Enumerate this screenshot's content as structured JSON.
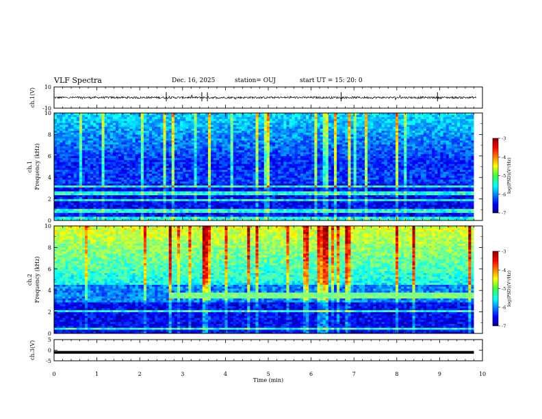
{
  "header": {
    "title": "VLF Spectra",
    "date": "Dec. 16, 2025",
    "station": "station= OUJ",
    "start_ut": "start UT =  15: 20: 0"
  },
  "chart_data": {
    "type": "heatmap",
    "xlabel": "Time (min)",
    "xlim": [
      0,
      10
    ],
    "x_ticks": [
      "0",
      "1",
      "2",
      "3",
      "4",
      "5",
      "6",
      "7",
      "8",
      "9",
      "10"
    ],
    "panels": [
      {
        "name": "ch1-waveform",
        "type": "line",
        "ylabel": "ch.1(V)",
        "ylim": [
          -10,
          10
        ],
        "y_ticks": [
          "10",
          "-10"
        ],
        "baseline": 0,
        "amplitude": 1.2
      },
      {
        "name": "ch1-spectrogram",
        "type": "heatmap",
        "ylabel_top": "ch.1",
        "ylabel": "Frequency (kHz)",
        "ylim": [
          0,
          10
        ],
        "y_ticks": [
          "0",
          "2",
          "4",
          "6",
          "8",
          "10"
        ],
        "colorbar": {
          "label": "log(PSD)(V²/Hz)",
          "range": [
            -7,
            -3
          ],
          "ticks": [
            "-3",
            "-4",
            "-5",
            "-6",
            "-7"
          ]
        },
        "data_end_min": 9.8
      },
      {
        "name": "ch2-spectrogram",
        "type": "heatmap",
        "ylabel_top": "ch.2",
        "ylabel": "Frequency (kHz)",
        "ylim": [
          0,
          10
        ],
        "y_ticks": [
          "0",
          "2",
          "4",
          "6",
          "8",
          "10"
        ],
        "colorbar": {
          "label": "log(PSD)(V²/Hz)",
          "range": [
            -7,
            -3
          ],
          "ticks": [
            "-3",
            "-4",
            "-5",
            "-6",
            "-7"
          ]
        },
        "band_start_min": 2.7,
        "band_khz": 3.5,
        "data_end_min": 9.8
      },
      {
        "name": "ch3-waveform",
        "type": "line",
        "ylabel": "ch.3(V)",
        "ylim": [
          -5,
          5
        ],
        "y_ticks": [
          "5",
          "0",
          "-5"
        ],
        "baseline": -1,
        "data_end_min": 9.8
      }
    ]
  },
  "colors": {
    "axis": "#000000",
    "waveform": "#000000",
    "cmap_low": "#00008f",
    "cmap_high": "#8f0000"
  }
}
